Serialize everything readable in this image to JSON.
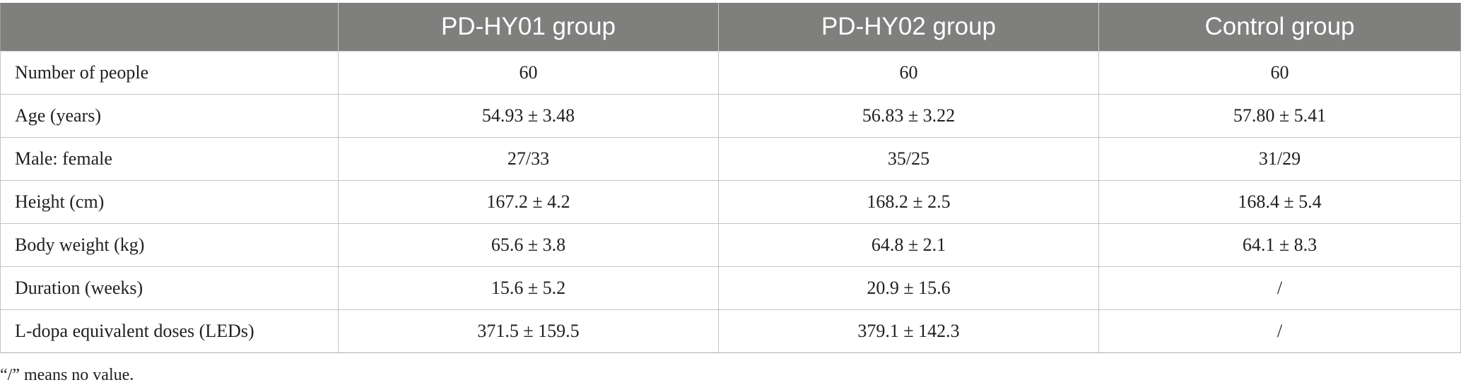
{
  "table": {
    "headers": [
      "",
      "PD-HY01 group",
      "PD-HY02 group",
      "Control group"
    ],
    "rows": [
      {
        "label": "Number of people",
        "cells": [
          "60",
          "60",
          "60"
        ]
      },
      {
        "label": "Age (years)",
        "cells": [
          "54.93 ± 3.48",
          "56.83 ± 3.22",
          "57.80 ± 5.41"
        ]
      },
      {
        "label": "Male: female",
        "cells": [
          "27/33",
          "35/25",
          "31/29"
        ]
      },
      {
        "label": "Height (cm)",
        "cells": [
          "167.2 ± 4.2",
          "168.2 ± 2.5",
          "168.4 ± 5.4"
        ]
      },
      {
        "label": "Body weight (kg)",
        "cells": [
          "65.6 ± 3.8",
          "64.8 ± 2.1",
          "64.1 ± 8.3"
        ]
      },
      {
        "label": "Duration (weeks)",
        "cells": [
          "15.6 ± 5.2",
          "20.9 ± 15.6",
          "/"
        ]
      },
      {
        "label": "L-dopa equivalent doses (LEDs)",
        "cells": [
          "371.5 ± 159.5",
          "379.1 ± 142.3",
          "/"
        ]
      }
    ]
  },
  "footnote": "“/” means no value.",
  "colors": {
    "header_background": "#7f7f7e",
    "header_text": "#ffffff",
    "grid_lines": "#c4c4c4"
  }
}
